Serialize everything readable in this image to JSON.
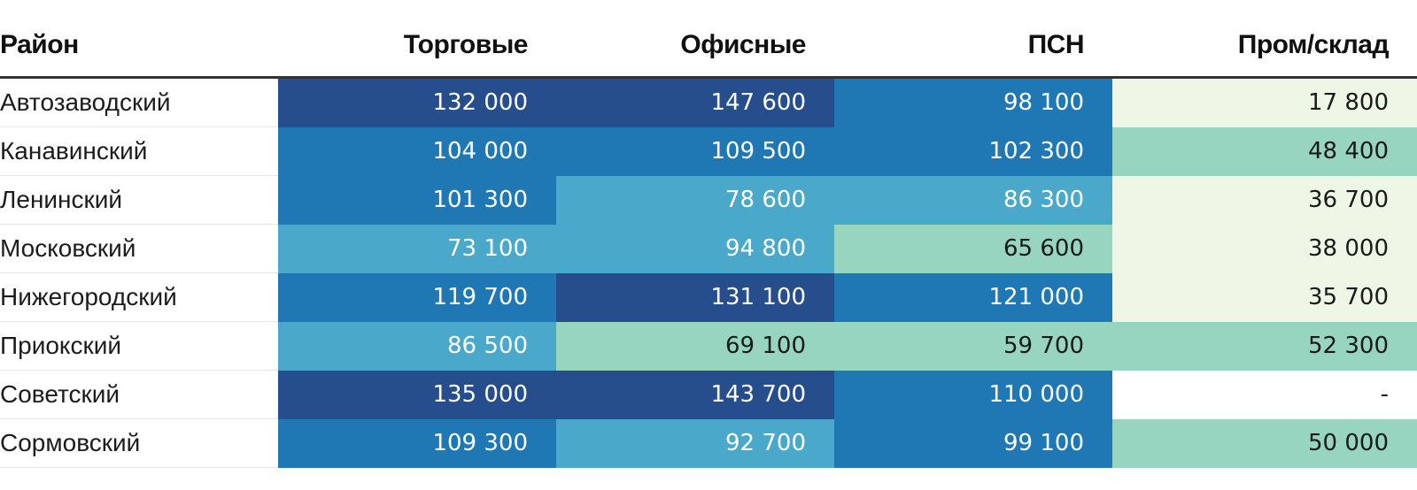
{
  "chart_data": {
    "type": "table",
    "columns": [
      "Район",
      "Торговые",
      "Офисные",
      "ПСН",
      "Пром/склад"
    ],
    "rows": [
      {
        "name": "Автозаводский",
        "values": [
          "132 000",
          "147 600",
          "98 100",
          "17 800"
        ],
        "numeric": [
          132000,
          147600,
          98100,
          17800
        ],
        "colors": [
          "#264d8c",
          "#264d8c",
          "#1f78b4",
          "#eef7e6"
        ]
      },
      {
        "name": "Канавинский",
        "values": [
          "104 000",
          "109 500",
          "102 300",
          "48 400"
        ],
        "numeric": [
          104000,
          109500,
          102300,
          48400
        ],
        "colors": [
          "#1f78b4",
          "#1f78b4",
          "#1f78b4",
          "#97d5c0"
        ]
      },
      {
        "name": "Ленинский",
        "values": [
          "101 300",
          "78 600",
          "86 300",
          "36 700"
        ],
        "numeric": [
          101300,
          78600,
          86300,
          36700
        ],
        "colors": [
          "#1f78b4",
          "#4aa8cb",
          "#4aa8cb",
          "#eef7e6"
        ]
      },
      {
        "name": "Московский",
        "values": [
          "73 100",
          "94 800",
          "65 600",
          "38 000"
        ],
        "numeric": [
          73100,
          94800,
          65600,
          38000
        ],
        "colors": [
          "#4aa8cb",
          "#4aa8cb",
          "#97d5c0",
          "#eef7e6"
        ]
      },
      {
        "name": "Нижегородский",
        "values": [
          "119 700",
          "131 100",
          "121 000",
          "35 700"
        ],
        "numeric": [
          119700,
          131100,
          121000,
          35700
        ],
        "colors": [
          "#1f78b4",
          "#264d8c",
          "#1f78b4",
          "#eef7e6"
        ]
      },
      {
        "name": "Приокский",
        "values": [
          "86 500",
          "69 100",
          "59 700",
          "52 300"
        ],
        "numeric": [
          86500,
          69100,
          59700,
          52300
        ],
        "colors": [
          "#4aa8cb",
          "#97d5c0",
          "#97d5c0",
          "#97d5c0"
        ]
      },
      {
        "name": "Советский",
        "values": [
          "135 000",
          "143 700",
          "110 000",
          "-"
        ],
        "numeric": [
          135000,
          143700,
          110000,
          null
        ],
        "colors": [
          "#264d8c",
          "#264d8c",
          "#1f78b4",
          "#ffffff"
        ]
      },
      {
        "name": "Сормовский",
        "values": [
          "109 300",
          "92 700",
          "99 100",
          "50 000"
        ],
        "numeric": [
          109300,
          92700,
          99100,
          50000
        ],
        "colors": [
          "#1f78b4",
          "#4aa8cb",
          "#1f78b4",
          "#97d5c0"
        ]
      }
    ],
    "text_colors": {
      "dark_cells": "#ffffff",
      "light_cells": "#1a1a1a"
    }
  }
}
